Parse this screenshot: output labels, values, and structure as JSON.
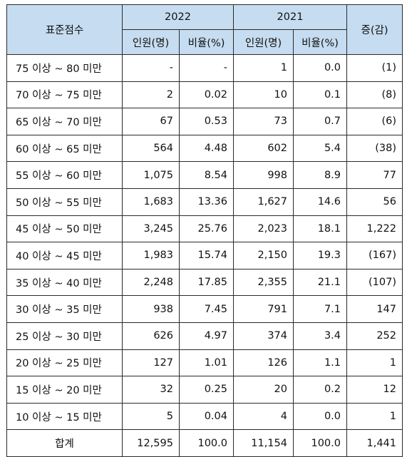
{
  "header": {
    "score_col": "표준점수",
    "year_a": "2022",
    "year_b": "2021",
    "change_col": "증(감)",
    "count_label": "인원(명)",
    "ratio_label": "비율(%)"
  },
  "rows": [
    {
      "range": "75 이상 ~ 80 미만",
      "c22": "-",
      "r22": "-",
      "c21": "1",
      "r21": "0.0",
      "chg": "(1)"
    },
    {
      "range": "70 이상 ~ 75 미만",
      "c22": "2",
      "r22": "0.02",
      "c21": "10",
      "r21": "0.1",
      "chg": "(8)"
    },
    {
      "range": "65 이상 ~ 70 미만",
      "c22": "67",
      "r22": "0.53",
      "c21": "73",
      "r21": "0.7",
      "chg": "(6)"
    },
    {
      "range": "60 이상 ~ 65 미만",
      "c22": "564",
      "r22": "4.48",
      "c21": "602",
      "r21": "5.4",
      "chg": "(38)"
    },
    {
      "range": "55 이상 ~ 60 미만",
      "c22": "1,075",
      "r22": "8.54",
      "c21": "998",
      "r21": "8.9",
      "chg": "77"
    },
    {
      "range": "50 이상 ~ 55 미만",
      "c22": "1,683",
      "r22": "13.36",
      "c21": "1,627",
      "r21": "14.6",
      "chg": "56"
    },
    {
      "range": "45 이상 ~ 50 미만",
      "c22": "3,245",
      "r22": "25.76",
      "c21": "2,023",
      "r21": "18.1",
      "chg": "1,222"
    },
    {
      "range": "40 이상 ~ 45 미만",
      "c22": "1,983",
      "r22": "15.74",
      "c21": "2,150",
      "r21": "19.3",
      "chg": "(167)"
    },
    {
      "range": "35 이상 ~ 40 미만",
      "c22": "2,248",
      "r22": "17.85",
      "c21": "2,355",
      "r21": "21.1",
      "chg": "(107)"
    },
    {
      "range": "30 이상 ~ 35 미만",
      "c22": "938",
      "r22": "7.45",
      "c21": "791",
      "r21": "7.1",
      "chg": "147"
    },
    {
      "range": "25 이상 ~ 30 미만",
      "c22": "626",
      "r22": "4.97",
      "c21": "374",
      "r21": "3.4",
      "chg": "252"
    },
    {
      "range": "20 이상 ~ 25 미만",
      "c22": "127",
      "r22": "1.01",
      "c21": "126",
      "r21": "1.1",
      "chg": "1"
    },
    {
      "range": "15 이상 ~ 20 미만",
      "c22": "32",
      "r22": "0.25",
      "c21": "20",
      "r21": "0.2",
      "chg": "12"
    },
    {
      "range": "10 이상 ~ 15 미만",
      "c22": "5",
      "r22": "0.04",
      "c21": "4",
      "r21": "0.0",
      "chg": "1"
    }
  ],
  "total": {
    "label": "합계",
    "c22": "12,595",
    "r22": "100.0",
    "c21": "11,154",
    "r21": "100.0",
    "chg": "1,441"
  },
  "colors": {
    "header_bg": "#c6dcf0",
    "border": "#2a2a2a"
  }
}
